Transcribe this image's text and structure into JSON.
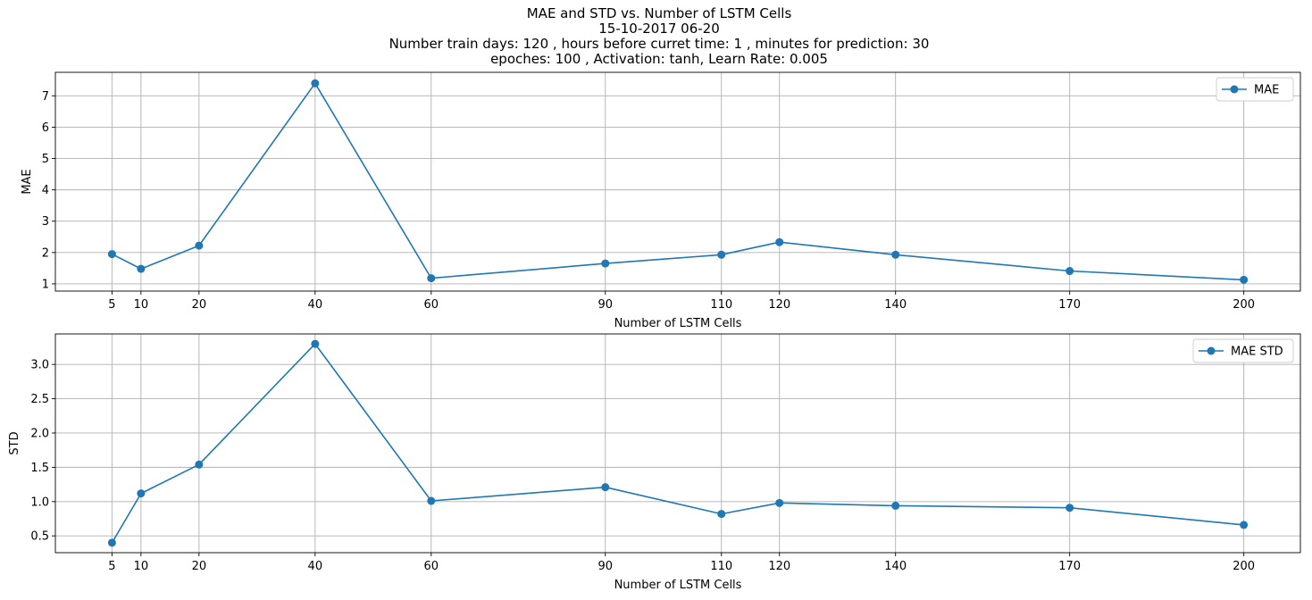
{
  "title_lines": [
    "MAE and STD vs. Number of LSTM Cells",
    "15-10-2017 06-20",
    "Number train days: 120 , hours before curret time: 1 , minutes for prediction: 30",
    "epoches: 100 , Activation: tanh, Learn Rate: 0.005"
  ],
  "colors": {
    "series": "#1f77b4",
    "grid": "#b0b0b0",
    "axes": "#000000"
  },
  "chart_data": [
    {
      "type": "line",
      "xlabel": "Number of LSTM Cells",
      "ylabel": "MAE",
      "x": [
        5,
        10,
        20,
        40,
        60,
        90,
        110,
        120,
        140,
        170,
        200
      ],
      "xticks": [
        5,
        10,
        20,
        40,
        60,
        90,
        110,
        120,
        140,
        170,
        200
      ],
      "xlim": [
        -4.75,
        209.75
      ],
      "ylim": [
        0.77,
        7.75
      ],
      "yticks": [
        1,
        2,
        3,
        4,
        5,
        6,
        7
      ],
      "grid": true,
      "legend": "upper right",
      "series": [
        {
          "name": "MAE",
          "marker": "circle",
          "values": [
            1.95,
            1.48,
            2.22,
            7.4,
            1.18,
            1.65,
            1.93,
            2.33,
            1.93,
            1.41,
            1.13
          ]
        }
      ]
    },
    {
      "type": "line",
      "xlabel": "Number of LSTM Cells",
      "ylabel": "STD",
      "x": [
        5,
        10,
        20,
        40,
        60,
        90,
        110,
        120,
        140,
        170,
        200
      ],
      "xticks": [
        5,
        10,
        20,
        40,
        60,
        90,
        110,
        120,
        140,
        170,
        200
      ],
      "xlim": [
        -4.75,
        209.75
      ],
      "ylim": [
        0.255,
        3.445
      ],
      "yticks": [
        "0.5",
        "1.0",
        "1.5",
        "2.0",
        "2.5",
        "3.0"
      ],
      "grid": true,
      "legend": "upper right",
      "series": [
        {
          "name": "MAE STD",
          "marker": "circle",
          "values": [
            0.4,
            1.12,
            1.54,
            3.3,
            1.01,
            1.21,
            0.82,
            0.98,
            0.94,
            0.91,
            0.66
          ]
        }
      ]
    }
  ]
}
